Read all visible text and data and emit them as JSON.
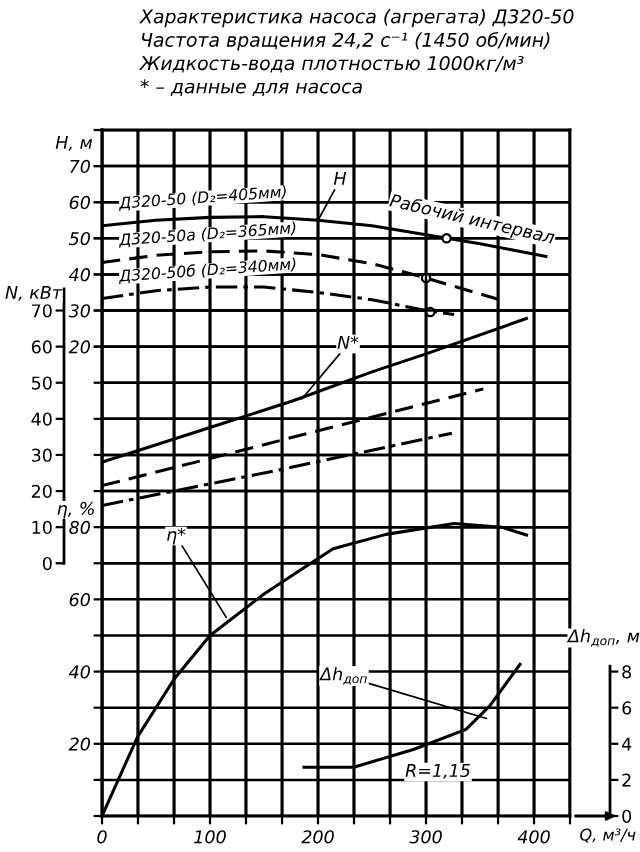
{
  "chart_data": [
    {
      "type": "line",
      "title": "Характеристика насоса (агрегата) Д320-50",
      "subtitle": "Частота вращения 24,2 с⁻¹ (1450 об/мин)\nЖидкость-вода плотностью 1000кг/м³\n* – данные для насоса",
      "ylabel": "H, м",
      "xlim": [
        0,
        433.3
      ],
      "xticks": [
        0,
        {
          "value": 33.3,
          "label": null
        },
        {
          "value": 66.7,
          "label": null
        },
        100,
        {
          "value": 133.3,
          "label": null
        },
        {
          "value": 166.7,
          "label": null
        },
        200,
        {
          "value": 233.3,
          "label": null
        },
        {
          "value": 266.7,
          "label": null
        },
        300,
        {
          "value": 333.3,
          "label": null
        },
        {
          "value": 366.7,
          "label": null
        },
        400,
        {
          "value": 433.3,
          "label": null
        }
      ],
      "ylim": [
        -110,
        80
      ],
      "yticks": [
        20,
        30,
        40,
        50,
        60,
        70
      ],
      "tick_labels": "y",
      "grid": true,
      "series": [
        {
          "name": "Д320-50 (D₂=405мм)",
          "line_style": "solid",
          "color": "#000000",
          "x": [
            0,
            50,
            100,
            150,
            200,
            250,
            300,
            350,
            411
          ],
          "values": [
            53.5,
            55,
            55.8,
            56,
            55,
            53.5,
            51,
            48.5,
            45
          ]
        },
        {
          "name": "Д320-50а (D₂=365мм)",
          "line_style": "dashed",
          "color": "#000000",
          "x": [
            0,
            50,
            100,
            150,
            200,
            250,
            300,
            368
          ],
          "values": [
            43.3,
            45.3,
            46.3,
            46.5,
            45.5,
            43,
            39,
            33
          ]
        },
        {
          "name": "Д320-50б (D₂=340мм)",
          "line_style": "dashdot",
          "color": "#000000",
          "x": [
            0,
            50,
            100,
            150,
            200,
            250,
            300,
            326
          ],
          "values": [
            33.3,
            35.5,
            36.5,
            36.5,
            35,
            33,
            30,
            28.9
          ]
        },
        {
          "type": "scatter",
          "marker": "circle",
          "color": "#000000",
          "x": [
            319,
            300,
            304
          ],
          "values": [
            50,
            39,
            29.6
          ]
        }
      ],
      "annotations": [
        {
          "text": "H",
          "x": 200,
          "y": 55
        },
        "Рабочий интервал"
      ]
    },
    {
      "type": "line",
      "ylabel": "N, кВт",
      "xlim": [
        0,
        433.3
      ],
      "xticks": [
        0,
        {
          "value": 33.3,
          "label": null
        },
        {
          "value": 66.7,
          "label": null
        },
        100,
        {
          "value": 133.3,
          "label": null
        },
        {
          "value": 166.7,
          "label": null
        },
        200,
        {
          "value": 233.3,
          "label": null
        },
        {
          "value": 266.7,
          "label": null
        },
        300,
        {
          "value": 333.3,
          "label": null
        },
        {
          "value": 366.7,
          "label": null
        },
        400,
        {
          "value": 433.3,
          "label": null
        }
      ],
      "ylim": [
        -70,
        120
      ],
      "yticks": [
        0,
        10,
        20,
        30,
        40,
        50,
        60,
        70
      ],
      "tick_labels": "y",
      "grid": true,
      "series": [
        {
          "line_style": "solid",
          "color": "#000000",
          "x": [
            0,
            100,
            177,
            250,
            300,
            393
          ],
          "values": [
            28,
            37.6,
            45,
            53,
            58,
            67.8
          ]
        },
        {
          "line_style": "dashed",
          "color": "#000000",
          "x": [
            0,
            100,
            200,
            353
          ],
          "values": [
            21.5,
            29,
            36.7,
            48.3
          ]
        },
        {
          "line_style": "dashdot",
          "color": "#000000",
          "x": [
            0,
            150,
            324
          ],
          "values": [
            16,
            25,
            36
          ]
        }
      ],
      "annotations": [
        {
          "text": "N*",
          "x": 185,
          "y": 45.5
        }
      ]
    },
    {
      "type": "line",
      "xlabel": "Q, м³/ч",
      "ylabel": "η, %",
      "xlim": [
        0,
        433.3
      ],
      "xticks": [
        0,
        {
          "value": 33.3,
          "label": null
        },
        {
          "value": 66.7,
          "label": null
        },
        100,
        {
          "value": 133.3,
          "label": null
        },
        {
          "value": 166.7,
          "label": null
        },
        200,
        {
          "value": 233.3,
          "label": null
        },
        {
          "value": 266.7,
          "label": null
        },
        300,
        {
          "value": 333.3,
          "label": null
        },
        {
          "value": 366.7,
          "label": null
        },
        400,
        {
          "value": 433.3,
          "label": null
        }
      ],
      "ylim": [
        0,
        190
      ],
      "yticks": [
        {
          "value": 0,
          "label": null
        },
        {
          "value": 10,
          "label": null
        },
        20,
        {
          "value": 30,
          "label": null
        },
        40,
        {
          "value": 50,
          "label": null
        },
        60,
        {
          "value": 70,
          "label": null
        },
        80,
        {
          "value": 90,
          "label": null
        },
        {
          "value": 100,
          "label": null
        },
        {
          "value": 110,
          "label": null
        },
        {
          "value": 120,
          "label": null
        },
        {
          "value": 130,
          "label": null
        },
        {
          "value": 140,
          "label": null
        },
        {
          "value": 150,
          "label": null
        },
        {
          "value": 160,
          "label": null
        },
        {
          "value": 170,
          "label": null
        },
        {
          "value": 180,
          "label": null
        },
        {
          "value": 190,
          "label": null
        }
      ],
      "grid": true,
      "series": [
        {
          "line_style": "solid",
          "color": "#000000",
          "x": [
            0,
            33,
            67,
            100,
            150,
            183,
            214,
            263,
            326,
            370,
            393
          ],
          "values": [
            0,
            22,
            38,
            50,
            61.5,
            68,
            74,
            78,
            81,
            80,
            77.8
          ]
        }
      ],
      "annotations": [
        {
          "text": "η*",
          "x": 115,
          "y": 55
        }
      ]
    },
    {
      "type": "line",
      "ylabel": "Δh$_{доп}$, м",
      "xlim": [
        0,
        433.3
      ],
      "ylim": [
        0,
        38
      ],
      "yticks": [
        0,
        2,
        4,
        6,
        8
      ],
      "tick_labels": "y",
      "series": [
        {
          "line_style": "solid",
          "color": "#000000",
          "x": [
            187,
            233,
            289,
            337,
            359,
            387
          ],
          "values": [
            2.7,
            2.7,
            3.7,
            4.8,
            6.1,
            8.4
          ]
        }
      ],
      "annotations": [
        {
          "text": "Δh$_{доп}$",
          "x": 356,
          "y": 5.4
        },
        "R=1,15"
      ]
    }
  ]
}
